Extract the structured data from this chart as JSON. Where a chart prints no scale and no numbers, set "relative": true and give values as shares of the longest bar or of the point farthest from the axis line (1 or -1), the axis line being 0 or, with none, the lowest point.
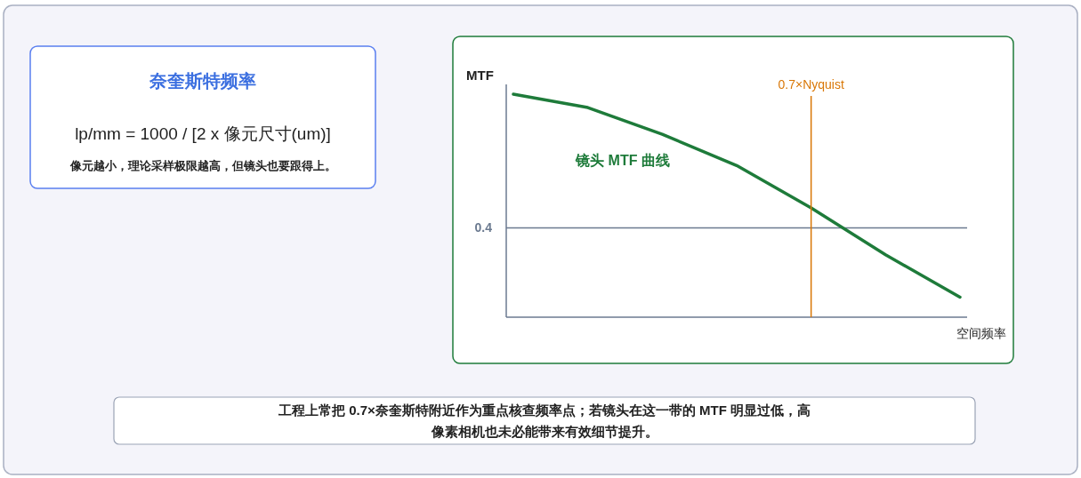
{
  "chart_data": [
    {
      "type": "other",
      "title": "奈奎斯特频率",
      "annotations": [
        "lp/mm = 1000 / [2 x 像元尺寸(um)]",
        "像元越小，理论采样极限越高，但镜头也要跟得上。"
      ]
    },
    {
      "type": "line",
      "ylabel": "MTF",
      "xlabel": "空间频率",
      "relative": true,
      "categories": [
        null,
        null,
        null,
        null,
        null,
        null,
        null
      ],
      "series": [
        {
          "name": "镜头 MTF 曲线",
          "color": "#1e7b3a",
          "values": [
            1,
            0.94,
            0.82,
            0.68,
            0.49,
            0.28,
            0.09
          ]
        }
      ],
      "ref_lines": [
        {
          "axis": "y",
          "value": 0.4,
          "label": "0.4",
          "color": "#6b7a90"
        }
      ],
      "marker": "none",
      "legend": false,
      "annotations": [
        "0.7×Nyquist",
        "工程上常把 0.7×奈奎斯特附近作为重点核查频率点；若镜头在这一带的 MTF 明显过低，高像素相机也未必能带来有效细节提升。"
      ]
    }
  ]
}
